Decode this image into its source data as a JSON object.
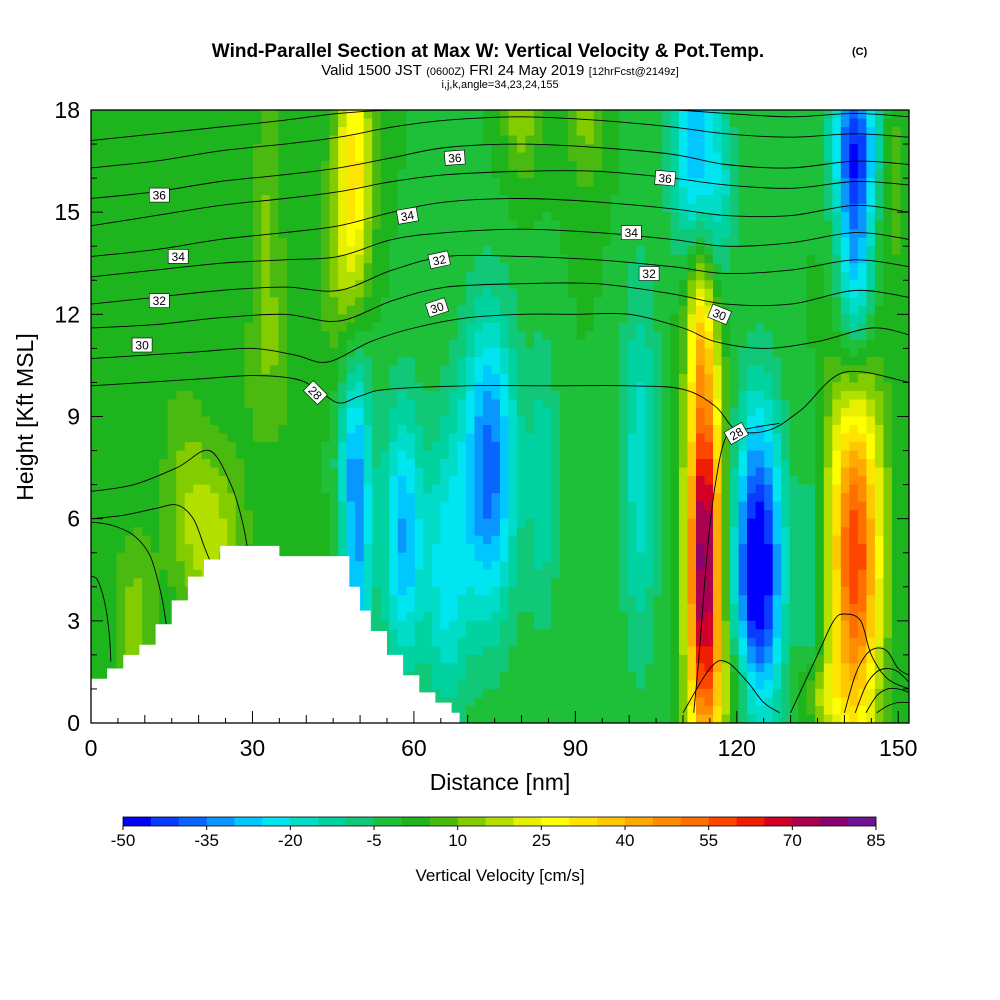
{
  "header": {
    "title": "Wind-Parallel Section at Max W: Vertical Velocity & Pot.Temp.",
    "title_mark": "(C)",
    "valid_prefix": "Valid 1500 JST",
    "valid_utc": "(0600Z)",
    "valid_date": "FRI 24 May 2019",
    "forecast": "[12hrFcst@2149z]",
    "params": "i,j,k,angle=34,23,24,155"
  },
  "chart_data": {
    "type": "heatmap",
    "title": "Wind-Parallel Section at Max W: Vertical Velocity & Pot.Temp.",
    "xlabel": "Distance [nm]",
    "ylabel": "Height [Kft MSL]",
    "xlim": [
      0,
      152
    ],
    "ylim": [
      0,
      18
    ],
    "x_ticks": [
      0,
      30,
      60,
      90,
      120,
      150
    ],
    "x_tick_labels": [
      "0",
      "30",
      "60",
      "90",
      "120",
      "150"
    ],
    "y_ticks": [
      0,
      3,
      6,
      9,
      12,
      15,
      18
    ],
    "y_tick_labels": [
      "0",
      "3",
      "6",
      "9",
      "12",
      "15",
      "18"
    ],
    "grid": false,
    "legend": "bottom",
    "colorbar": {
      "label": "Vertical Velocity [cm/s]",
      "min": -50,
      "max": 85,
      "step": 5,
      "tick_values": [
        -50,
        -35,
        -20,
        -5,
        10,
        25,
        40,
        55,
        70,
        85
      ],
      "tick_labels": [
        "-50",
        "-35",
        "-20",
        "-5",
        "10",
        "25",
        "40",
        "55",
        "70",
        "85"
      ],
      "colors": [
        "#0000ff",
        "#0a3cff",
        "#0a64ff",
        "#0a96ff",
        "#00c8ff",
        "#00e6f0",
        "#00dcc8",
        "#00d2a0",
        "#10c878",
        "#1ec03a",
        "#1eb41e",
        "#4aba10",
        "#82cc00",
        "#b4e000",
        "#e6f000",
        "#ffff00",
        "#ffe400",
        "#ffc800",
        "#ffaa00",
        "#ff8c00",
        "#ff6e00",
        "#ff4600",
        "#f01e00",
        "#d20028",
        "#aa0050",
        "#8c006e",
        "#6e1494"
      ]
    },
    "terrain": {
      "x": [
        0,
        0.5,
        3,
        6,
        9,
        12,
        15,
        18,
        21,
        24,
        27,
        30,
        35,
        44,
        48,
        50,
        52,
        55,
        58,
        61,
        64,
        67,
        68.5
      ],
      "y": [
        1.3,
        1.3,
        1.6,
        2.0,
        2.3,
        2.9,
        3.6,
        4.3,
        4.8,
        5.2,
        5.2,
        5.2,
        4.9,
        4.9,
        4.0,
        3.3,
        2.7,
        2.0,
        1.4,
        0.9,
        0.6,
        0.3,
        0.0
      ]
    },
    "w_field": [
      {
        "x": 114,
        "y": 4.8,
        "amp": 80,
        "sx": 2.3,
        "sy": 4.3
      },
      {
        "x": 142,
        "y": 5.0,
        "amp": 60,
        "sx": 3.4,
        "sy": 4.0
      },
      {
        "x": 124,
        "y": 4.5,
        "amp": -55,
        "sx": 3.2,
        "sy": 3.3
      },
      {
        "x": 74,
        "y": 7.5,
        "amp": -38,
        "sx": 3.6,
        "sy": 3.2
      },
      {
        "x": 49,
        "y": 6.2,
        "amp": -38,
        "sx": 2.2,
        "sy": 3.5
      },
      {
        "x": 58,
        "y": 5.5,
        "amp": -30,
        "sx": 2.6,
        "sy": 2.8
      },
      {
        "x": 66,
        "y": 4.5,
        "amp": -22,
        "sx": 3.0,
        "sy": 3.0
      },
      {
        "x": 102,
        "y": 7.5,
        "amp": -18,
        "sx": 2.6,
        "sy": 4.0
      },
      {
        "x": 84,
        "y": 7.0,
        "amp": -14,
        "sx": 2.0,
        "sy": 3.0
      },
      {
        "x": 134,
        "y": 4.2,
        "amp": -12,
        "sx": 1.6,
        "sy": 3.0
      },
      {
        "x": 22,
        "y": 5.5,
        "amp": 18,
        "sx": 4.5,
        "sy": 1.8
      },
      {
        "x": 8,
        "y": 3.0,
        "amp": 12,
        "sx": 3.0,
        "sy": 2.0
      },
      {
        "x": 17,
        "y": 8.0,
        "amp": 7,
        "sx": 3.0,
        "sy": 2.0
      },
      {
        "x": 47,
        "y": 5.6,
        "amp": 10,
        "sx": 2.0,
        "sy": 1.0
      },
      {
        "x": 33,
        "y": 10.5,
        "amp": 8,
        "sx": 4.0,
        "sy": 2.0
      },
      {
        "x": 49,
        "y": 16.5,
        "amp": 28,
        "sx": 2.2,
        "sy": 2.8
      },
      {
        "x": 47,
        "y": 13.5,
        "amp": 12,
        "sx": 3.0,
        "sy": 3.0
      },
      {
        "x": 33,
        "y": 15.5,
        "amp": 10,
        "sx": 2.0,
        "sy": 3.0
      },
      {
        "x": 80,
        "y": 18.0,
        "amp": 14,
        "sx": 2.5,
        "sy": 1.5
      },
      {
        "x": 92,
        "y": 18.0,
        "amp": 12,
        "sx": 2.5,
        "sy": 1.8
      },
      {
        "x": 112,
        "y": 17.0,
        "amp": -30,
        "sx": 3.0,
        "sy": 2.2
      },
      {
        "x": 117,
        "y": 15.5,
        "amp": -14,
        "sx": 2.0,
        "sy": 2.0
      },
      {
        "x": 142,
        "y": 14.0,
        "amp": -35,
        "sx": 2.4,
        "sy": 3.2
      },
      {
        "x": 142,
        "y": 17.2,
        "amp": -24,
        "sx": 3.5,
        "sy": 1.5
      },
      {
        "x": 149,
        "y": 16.0,
        "amp": 10,
        "sx": 1.6,
        "sy": 2.0
      },
      {
        "x": 113,
        "y": 11.5,
        "amp": 18,
        "sx": 1.6,
        "sy": 1.5
      },
      {
        "x": 136,
        "y": 0.8,
        "amp": 15,
        "sx": 3.0,
        "sy": 0.8
      },
      {
        "x": 120,
        "y": 1.0,
        "amp": 12,
        "sx": 4.0,
        "sy": 1.0
      }
    ],
    "theta_contours": [
      {
        "value": 28,
        "x": [
          0,
          10,
          20,
          30,
          38,
          42,
          46,
          50,
          55,
          70,
          85,
          100,
          110,
          116,
          120,
          126,
          132,
          140,
          152
        ],
        "y": [
          9.9,
          10.0,
          10.1,
          10.2,
          10.1,
          9.8,
          9.4,
          9.6,
          9.8,
          9.9,
          9.9,
          9.9,
          9.8,
          9.3,
          8.6,
          8.6,
          9.2,
          10.3,
          10.0
        ]
      },
      {
        "value": 30,
        "x": [
          0,
          10,
          20,
          30,
          38,
          44,
          52,
          60,
          70,
          80,
          90,
          100,
          110,
          116,
          125,
          135,
          145,
          152
        ],
        "y": [
          10.7,
          10.8,
          10.9,
          11.0,
          10.8,
          10.6,
          11.2,
          11.6,
          11.9,
          12.0,
          12.0,
          12.0,
          11.6,
          11.2,
          11.0,
          11.2,
          11.6,
          11.4
        ]
      },
      {
        "value": 31,
        "x": [
          0,
          12,
          24,
          36,
          46,
          56,
          66,
          80,
          94,
          108,
          118,
          130,
          142,
          152
        ],
        "y": [
          11.6,
          11.7,
          11.9,
          12.0,
          11.8,
          12.4,
          12.8,
          12.9,
          12.9,
          12.6,
          12.3,
          12.3,
          12.7,
          12.5
        ]
      },
      {
        "value": 32,
        "x": [
          0,
          12,
          24,
          36,
          46,
          56,
          66,
          80,
          94,
          108,
          118,
          130,
          142,
          152
        ],
        "y": [
          12.3,
          12.5,
          12.7,
          12.8,
          12.7,
          13.3,
          13.7,
          13.7,
          13.6,
          13.4,
          13.2,
          13.3,
          13.6,
          13.4
        ]
      },
      {
        "value": 33,
        "x": [
          0,
          12,
          24,
          36,
          46,
          56,
          66,
          80,
          94,
          108,
          118,
          130,
          142,
          152
        ],
        "y": [
          13.1,
          13.3,
          13.5,
          13.6,
          13.7,
          14.2,
          14.4,
          14.5,
          14.4,
          14.2,
          14.0,
          14.1,
          14.4,
          14.2
        ]
      },
      {
        "value": 34,
        "x": [
          0,
          12,
          24,
          36,
          46,
          56,
          66,
          80,
          94,
          108,
          118,
          130,
          142,
          152
        ],
        "y": [
          13.7,
          13.9,
          14.2,
          14.4,
          14.6,
          15.0,
          15.3,
          15.4,
          15.3,
          15.1,
          14.9,
          14.9,
          15.2,
          15.0
        ]
      },
      {
        "value": 35,
        "x": [
          0,
          12,
          24,
          36,
          46,
          56,
          66,
          80,
          94,
          108,
          118,
          130,
          142,
          152
        ],
        "y": [
          14.6,
          14.9,
          15.2,
          15.4,
          15.6,
          15.9,
          16.1,
          16.2,
          16.2,
          16.0,
          15.8,
          15.7,
          15.9,
          15.8
        ]
      },
      {
        "value": 36,
        "x": [
          0,
          12,
          24,
          36,
          46,
          56,
          66,
          80,
          94,
          108,
          118,
          130,
          142,
          152
        ],
        "y": [
          15.4,
          15.6,
          15.9,
          16.1,
          16.3,
          16.6,
          16.9,
          17.0,
          16.9,
          16.7,
          16.4,
          16.3,
          16.5,
          16.4
        ]
      },
      {
        "value": 37,
        "x": [
          0,
          12,
          24,
          36,
          46,
          56,
          66,
          80,
          94,
          108,
          118,
          130,
          142,
          152
        ],
        "y": [
          16.3,
          16.5,
          16.8,
          17.0,
          17.2,
          17.5,
          17.7,
          17.8,
          17.7,
          17.5,
          17.3,
          17.2,
          17.3,
          17.2
        ]
      },
      {
        "value": 38,
        "x": [
          0,
          12,
          24,
          36,
          46,
          56,
          66,
          80,
          94,
          108,
          118,
          130,
          142,
          152
        ],
        "y": [
          17.1,
          17.3,
          17.5,
          17.7,
          17.9,
          18.0,
          18.0,
          18.0,
          18.0,
          18.0,
          17.9,
          17.8,
          17.9,
          17.8
        ]
      }
    ],
    "lower_contours": [
      {
        "x": [
          0,
          8,
          16,
          22,
          26,
          28,
          29
        ],
        "y": [
          6.8,
          7.0,
          7.5,
          8.0,
          7.0,
          6.0,
          5.2
        ]
      },
      {
        "x": [
          0,
          6,
          12,
          16,
          19,
          21,
          22
        ],
        "y": [
          6.0,
          6.1,
          6.3,
          6.4,
          6.0,
          5.2,
          4.8
        ]
      },
      {
        "x": [
          0,
          4,
          8,
          11,
          13,
          14
        ],
        "y": [
          5.9,
          5.8,
          5.5,
          4.9,
          3.8,
          2.9
        ]
      },
      {
        "x": [
          0,
          1.2,
          2.6,
          3.4,
          3.7
        ],
        "y": [
          4.3,
          4.2,
          3.5,
          2.6,
          1.8
        ]
      },
      {
        "x": [
          0,
          2,
          4,
          6
        ],
        "y": [
          1.1,
          1.0,
          0.9,
          0.8
        ]
      },
      {
        "x": [
          112,
          113,
          114.5,
          116,
          118,
          121,
          124,
          128
        ],
        "y": [
          0.3,
          2.0,
          5.0,
          7.0,
          8.4,
          8.6,
          8.7,
          8.8
        ]
      },
      {
        "x": [
          130,
          135,
          138,
          140,
          143,
          145,
          148,
          152
        ],
        "y": [
          0.3,
          2.0,
          3.0,
          3.2,
          3.0,
          2.0,
          1.3,
          1.0
        ]
      },
      {
        "x": [
          140,
          142,
          144,
          146,
          148,
          150,
          152
        ],
        "y": [
          0.3,
          1.4,
          2.0,
          2.2,
          2.1,
          1.6,
          1.4
        ]
      },
      {
        "x": [
          142,
          144,
          146,
          148,
          150,
          152
        ],
        "y": [
          0.3,
          1.1,
          1.5,
          1.6,
          1.5,
          1.2
        ]
      },
      {
        "x": [
          144,
          146,
          148,
          150,
          152
        ],
        "y": [
          0.3,
          0.8,
          1.0,
          1.0,
          0.9
        ]
      },
      {
        "x": [
          146,
          148,
          150,
          152
        ],
        "y": [
          0.3,
          0.5,
          0.6,
          0.6
        ]
      },
      {
        "x": [
          110,
          115,
          118,
          122,
          125,
          128
        ],
        "y": [
          0.3,
          1.6,
          1.8,
          1.2,
          0.6,
          0.3
        ]
      }
    ],
    "contour_labels": [
      {
        "text": "36",
        "x": 12.7,
        "y": 15.5,
        "angle": 0
      },
      {
        "text": "34",
        "x": 16.2,
        "y": 13.7,
        "angle": 0
      },
      {
        "text": "32",
        "x": 12.7,
        "y": 12.4,
        "angle": 0
      },
      {
        "text": "30",
        "x": 9.5,
        "y": 11.1,
        "angle": 0
      },
      {
        "text": "28",
        "x": 41.7,
        "y": 9.7,
        "angle": 45
      },
      {
        "text": "30",
        "x": 64.3,
        "y": 12.2,
        "angle": -18
      },
      {
        "text": "32",
        "x": 64.7,
        "y": 13.6,
        "angle": -12
      },
      {
        "text": "34",
        "x": 58.8,
        "y": 14.9,
        "angle": -10
      },
      {
        "text": "36",
        "x": 67.6,
        "y": 16.6,
        "angle": -4
      },
      {
        "text": "36",
        "x": 106.7,
        "y": 16.0,
        "angle": 5
      },
      {
        "text": "34",
        "x": 100.4,
        "y": 14.4,
        "angle": 0
      },
      {
        "text": "32",
        "x": 103.7,
        "y": 13.2,
        "angle": 0
      },
      {
        "text": "30",
        "x": 116.8,
        "y": 12.0,
        "angle": 22
      },
      {
        "text": "28",
        "x": 119.9,
        "y": 8.5,
        "angle": -30
      }
    ]
  }
}
